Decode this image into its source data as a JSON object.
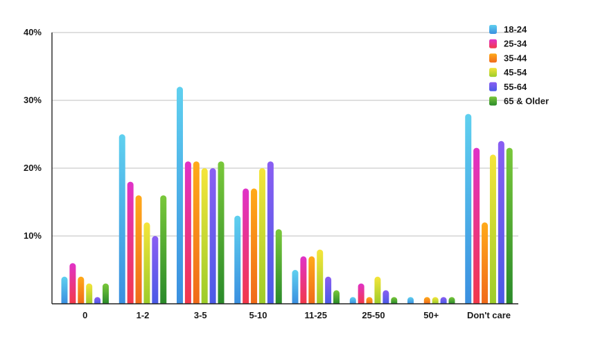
{
  "chart_data": {
    "type": "bar",
    "title": "",
    "xlabel": "",
    "ylabel": "",
    "categories": [
      "0",
      "1-2",
      "3-5",
      "5-10",
      "11-25",
      "25-50",
      "50+",
      "Don't care"
    ],
    "ylim": [
      0,
      40
    ],
    "yticks": [
      {
        "value": 10,
        "label": "10%"
      },
      {
        "value": 20,
        "label": "20%"
      },
      {
        "value": 30,
        "label": "30%"
      },
      {
        "value": 40,
        "label": "40%"
      }
    ],
    "grid": true,
    "legend_position": "top-right",
    "series": [
      {
        "name": "18-24",
        "color_top": "#5fd0ef",
        "color_bottom": "#3a8fe0",
        "values": [
          4,
          25,
          32,
          13,
          5,
          1,
          1,
          28
        ]
      },
      {
        "name": "25-34",
        "color_top": "#e032c8",
        "color_bottom": "#f2384a",
        "values": [
          6,
          18,
          21,
          17,
          7,
          3,
          0,
          23
        ]
      },
      {
        "name": "35-44",
        "color_top": "#ffaa1a",
        "color_bottom": "#f06a1a",
        "values": [
          4,
          16,
          21,
          17,
          7,
          1,
          1,
          12
        ]
      },
      {
        "name": "45-54",
        "color_top": "#f5e53a",
        "color_bottom": "#9ccc2a",
        "values": [
          3,
          12,
          20,
          20,
          8,
          4,
          1,
          22
        ]
      },
      {
        "name": "55-64",
        "color_top": "#8a5ef2",
        "color_bottom": "#4a5ae6",
        "values": [
          1,
          10,
          20,
          21,
          4,
          2,
          1,
          24
        ]
      },
      {
        "name": "65 & Older",
        "color_top": "#7ac83a",
        "color_bottom": "#2a8a2a",
        "values": [
          3,
          16,
          21,
          11,
          2,
          1,
          1,
          23
        ]
      }
    ]
  }
}
